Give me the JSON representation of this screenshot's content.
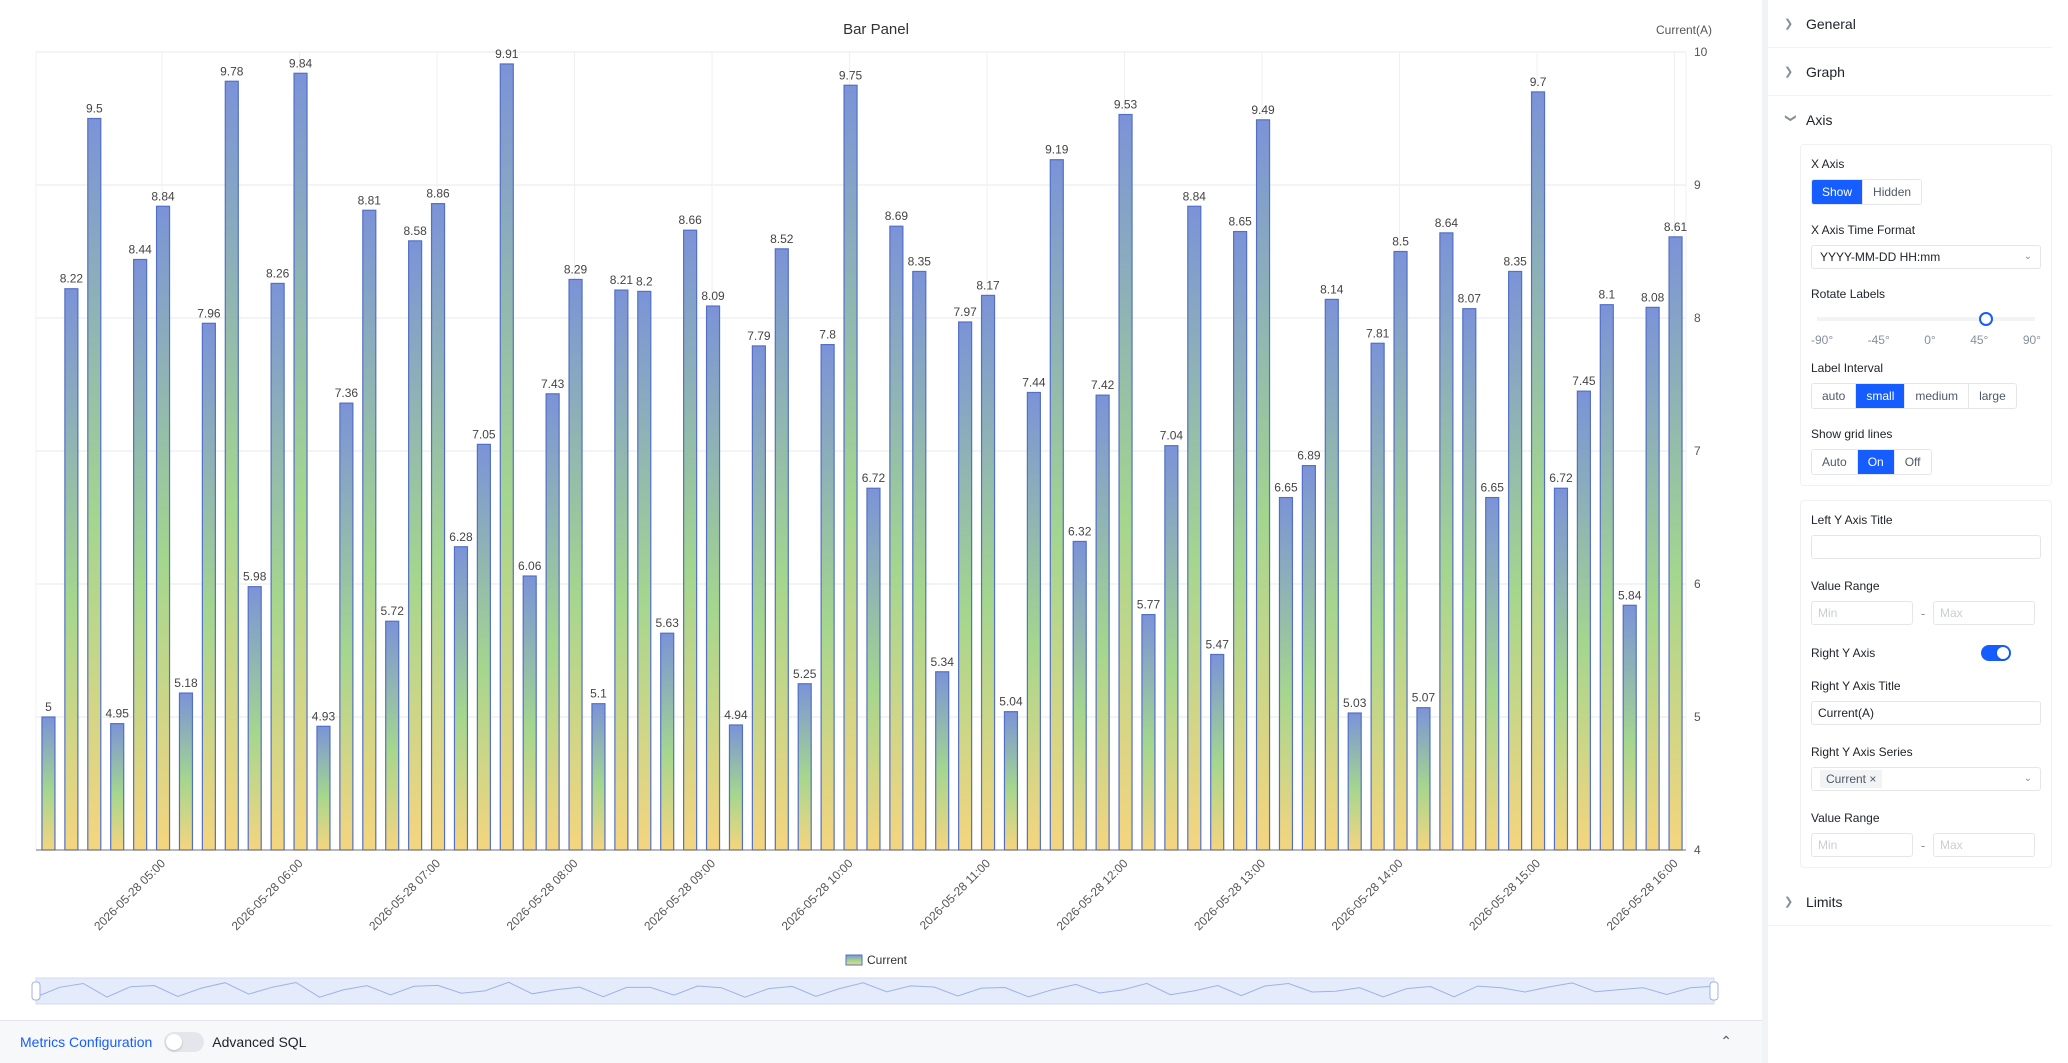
{
  "chart_data": {
    "type": "bar",
    "title": "Bar Panel",
    "ylabel": "Current(A)",
    "y_axis_side": "right",
    "ylim": [
      4,
      10
    ],
    "y_ticks": [
      4,
      5,
      6,
      7,
      8,
      9,
      10
    ],
    "x_tick_labels": [
      "2026-05-28 05:00",
      "2026-05-28 06:00",
      "2026-05-28 07:00",
      "2026-05-28 08:00",
      "2026-05-28 09:00",
      "2026-05-28 10:00",
      "2026-05-28 11:00",
      "2026-05-28 12:00",
      "2026-05-28 13:00",
      "2026-05-28 14:00",
      "2026-05-28 15:00",
      "2026-05-28 16:00"
    ],
    "grid": true,
    "legend_position": "bottom-center",
    "series": [
      {
        "name": "Current",
        "values": [
          5,
          8.22,
          9.5,
          4.95,
          8.44,
          8.84,
          5.18,
          7.96,
          9.78,
          5.98,
          8.26,
          9.84,
          4.93,
          7.36,
          8.81,
          5.72,
          8.58,
          8.86,
          6.28,
          7.05,
          9.91,
          6.06,
          7.43,
          8.29,
          5.1,
          8.21,
          8.2,
          5.63,
          8.66,
          8.09,
          4.94,
          7.79,
          8.52,
          5.25,
          7.8,
          9.75,
          6.72,
          8.69,
          8.35,
          5.34,
          7.97,
          8.17,
          5.04,
          7.44,
          9.19,
          6.32,
          7.42,
          9.53,
          5.77,
          7.04,
          8.84,
          5.47,
          8.65,
          9.49,
          6.65,
          6.89,
          8.14,
          5.03,
          7.81,
          8.5,
          5.07,
          8.64,
          8.07,
          6.65,
          8.35,
          9.7,
          6.72,
          7.45,
          8.1,
          5.84,
          8.08,
          8.61
        ]
      }
    ],
    "colors": {
      "bar_top": "#7b93d8",
      "bar_mid": "#a4d68e",
      "bar_bottom": "#f5d57f",
      "bar_border": "#5470c6"
    }
  },
  "bottom_bar": {
    "metrics_label": "Metrics Configuration",
    "advanced_sql_label": "Advanced SQL"
  },
  "panel": {
    "general": "General",
    "graph": "Graph",
    "axis": "Axis",
    "limits": "Limits",
    "x_axis_label": "X Axis",
    "x_axis_options": [
      "Show",
      "Hidden"
    ],
    "x_axis_selected": "Show",
    "x_time_format_label": "X Axis Time Format",
    "x_time_format_value": "YYYY-MM-DD HH:mm",
    "rotate_label": "Rotate Labels",
    "rotate_ticks": [
      "-90°",
      "-45°",
      "0°",
      "45°",
      "90°"
    ],
    "rotate_value": 45,
    "label_interval_label": "Label Interval",
    "label_interval_options": [
      "auto",
      "small",
      "medium",
      "large"
    ],
    "label_interval_selected": "small",
    "grid_label": "Show grid lines",
    "grid_options": [
      "Auto",
      "On",
      "Off"
    ],
    "grid_selected": "On",
    "left_y_title_label": "Left Y Axis Title",
    "left_y_title_value": "",
    "value_range_label": "Value Range",
    "min_placeholder": "Min",
    "max_placeholder": "Max",
    "right_y_axis_label": "Right Y Axis",
    "right_y_title_label": "Right Y Axis Title",
    "right_y_title_value": "Current(A)",
    "right_y_series_label": "Right Y Axis Series",
    "right_y_series_tag": "Current",
    "tag_close": "×"
  }
}
